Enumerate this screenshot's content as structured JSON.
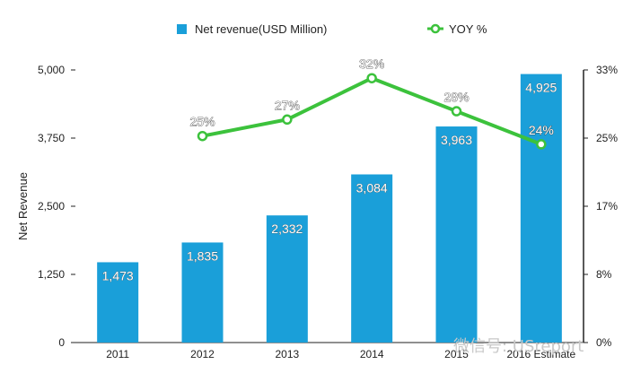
{
  "chart_data": {
    "type": "bar",
    "categories": [
      "2011",
      "2012",
      "2013",
      "2014",
      "2015",
      "2016 Estimate"
    ],
    "series": [
      {
        "name": "Net revenue(USD Million)",
        "type": "bar",
        "axis": "left",
        "color": "#1a9fd9",
        "values": [
          1473,
          1835,
          2332,
          3084,
          3963,
          4925
        ],
        "labels": [
          "1,473",
          "1,835",
          "2,332",
          "3,084",
          "3,963",
          "4,925"
        ]
      },
      {
        "name": "YOY %",
        "type": "line",
        "axis": "right",
        "color": "#3cc23c",
        "values": [
          null,
          25,
          27,
          32,
          28,
          24
        ],
        "labels": [
          "",
          "25%",
          "27%",
          "32%",
          "28%",
          "24%"
        ]
      }
    ],
    "ylabel": "Net Revenue",
    "ylim": [
      0,
      5000
    ],
    "yticks": [
      "0",
      "1,250",
      "2,500",
      "3,750",
      "5,000"
    ],
    "y2lim": [
      0,
      33
    ],
    "y2ticks": [
      "0%",
      "8%",
      "17%",
      "25%",
      "33%"
    ],
    "legend_position": "top",
    "grid": false
  },
  "watermark": "微信号: USreport"
}
